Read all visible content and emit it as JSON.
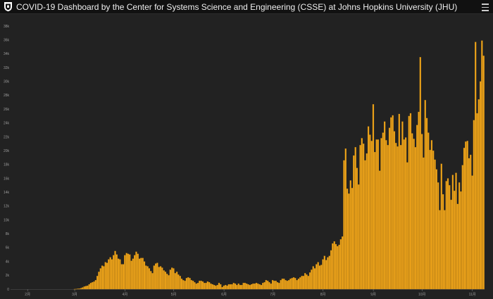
{
  "header": {
    "title": "COVID-19 Dashboard by the Center for Systems Science and Engineering (CSSE) at Johns Hopkins University (JHU)",
    "menu_icon": "hamburger-menu-icon",
    "logo_icon": "jhu-shield-logo-icon"
  },
  "colors": {
    "background": "#222222",
    "header_background": "#111111",
    "bar": "#f2a71b",
    "bar_edge": "#b57a0e",
    "axis_text": "#9a9a9a"
  },
  "chart_data": {
    "type": "bar",
    "title": "",
    "xlabel": "",
    "ylabel": "",
    "ylim": [
      0,
      38000
    ],
    "grid": false,
    "y_ticks": [
      0,
      2000,
      4000,
      6000,
      8000,
      10000,
      12000,
      14000,
      16000,
      18000,
      20000,
      22000,
      24000,
      26000,
      28000,
      30000,
      32000,
      34000,
      36000,
      38000
    ],
    "y_tick_labels": [
      "0",
      "2k",
      "4k",
      "6k",
      "8k",
      "10k",
      "12k",
      "14k",
      "16k",
      "18k",
      "20k",
      "22k",
      "24k",
      "26k",
      "28k",
      "30k",
      "32k",
      "34k",
      "36k",
      "38k"
    ],
    "x_tick_labels": [
      "2月",
      "3月",
      "4月",
      "5月",
      "6月",
      "7月",
      "8月",
      "9月",
      "10月",
      "11月",
      "12月"
    ],
    "x_tick_positions": [
      10,
      39,
      70,
      100,
      131,
      161,
      192,
      223,
      253,
      284,
      314
    ],
    "values": [
      0,
      0,
      0,
      0,
      0,
      0,
      0,
      0,
      0,
      0,
      0,
      0,
      0,
      0,
      0,
      0,
      0,
      0,
      0,
      0,
      0,
      0,
      0,
      0,
      0,
      0,
      0,
      0,
      0,
      0,
      0,
      0,
      0,
      0,
      0,
      0,
      0,
      0,
      0,
      10,
      30,
      60,
      80,
      150,
      250,
      380,
      450,
      500,
      700,
      900,
      1000,
      1100,
      1300,
      1900,
      2500,
      3000,
      3400,
      3300,
      3900,
      3800,
      4300,
      4600,
      4300,
      4900,
      5500,
      5000,
      4400,
      4300,
      3600,
      3600,
      4900,
      5200,
      5100,
      5000,
      4100,
      4400,
      4900,
      5400,
      5100,
      4400,
      4500,
      4500,
      4000,
      3400,
      3300,
      3000,
      2600,
      2300,
      3400,
      3700,
      3800,
      3200,
      3300,
      3100,
      2700,
      2500,
      2200,
      2000,
      2800,
      3100,
      3000,
      2300,
      2500,
      2100,
      1900,
      1500,
      1300,
      1200,
      1600,
      1700,
      1600,
      1300,
      1200,
      1000,
      800,
      900,
      1200,
      1200,
      1100,
      900,
      900,
      1100,
      1000,
      800,
      700,
      600,
      500,
      600,
      900,
      700,
      300,
      500,
      600,
      500,
      700,
      700,
      700,
      900,
      800,
      600,
      800,
      600,
      600,
      900,
      900,
      800,
      700,
      600,
      700,
      800,
      800,
      900,
      800,
      700,
      600,
      900,
      1000,
      1300,
      1200,
      1000,
      800,
      1300,
      1200,
      1200,
      1000,
      900,
      1300,
      1500,
      1500,
      1300,
      1200,
      1300,
      1500,
      1600,
      1700,
      1600,
      1300,
      1500,
      1700,
      1900,
      1900,
      2300,
      2100,
      1900,
      2400,
      2800,
      3300,
      3000,
      3600,
      3900,
      3400,
      3500,
      4300,
      4800,
      4200,
      4600,
      4800,
      5600,
      6600,
      6900,
      6500,
      6200,
      6400,
      7200,
      7600,
      18600,
      20300,
      14500,
      13800,
      15700,
      14600,
      19300,
      20500,
      17500,
      15100,
      20800,
      21800,
      21000,
      18600,
      19600,
      23500,
      22300,
      21400,
      26700,
      19800,
      21600,
      21600,
      17100,
      21800,
      22600,
      24200,
      21500,
      20800,
      23300,
      24800,
      25100,
      22800,
      21100,
      20600,
      25300,
      20800,
      24200,
      21600,
      21900,
      18300,
      25000,
      25400,
      22500,
      21700,
      20500,
      23700,
      25600,
      33500,
      22400,
      19000,
      27300,
      24700,
      22600,
      20100,
      21500,
      20000,
      18700,
      17300,
      15400,
      11400,
      18100,
      13700,
      11400,
      15600,
      16000,
      15000,
      12900,
      16500,
      14200,
      16800,
      12300,
      15400,
      14100,
      17900,
      20400,
      21300,
      21400,
      18900,
      19400,
      16400,
      24400,
      35700,
      25400,
      27400,
      30000,
      35900,
      33700
    ]
  }
}
